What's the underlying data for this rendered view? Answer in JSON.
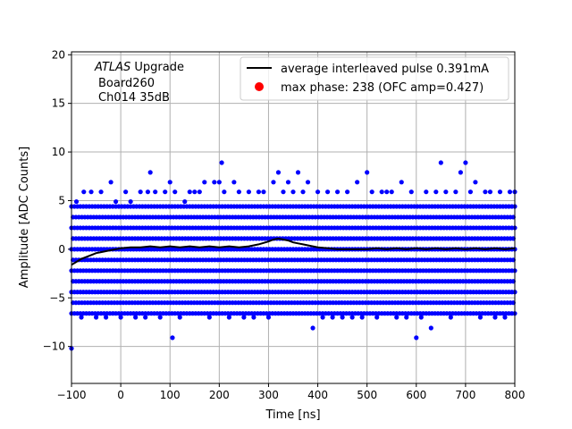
{
  "chart_data": {
    "type": "scatter",
    "xlabel": "Time [ns]",
    "ylabel": "Amplitude [ADC Counts]",
    "xlim": [
      -100,
      800
    ],
    "ylim": [
      -13.8,
      20.3
    ],
    "xticks": [
      -100,
      0,
      100,
      200,
      300,
      400,
      500,
      600,
      700,
      800
    ],
    "yticks": [
      -10,
      -5,
      0,
      5,
      10,
      15,
      20
    ],
    "grid": true,
    "legend_position": "top-right",
    "annotation": {
      "line1_italic": "ATLAS",
      "line1_rest": " Upgrade",
      "line2": "Board260",
      "line3": "Ch014 35dB"
    },
    "series": [
      {
        "name": "average interleaved pulse 0.391mA",
        "kind": "line",
        "color": "#000000",
        "x": [
          -100,
          -90,
          -80,
          -70,
          -60,
          -50,
          -40,
          -30,
          -20,
          -10,
          0,
          20,
          40,
          60,
          80,
          100,
          120,
          140,
          160,
          180,
          200,
          220,
          240,
          260,
          280,
          300,
          310,
          320,
          330,
          340,
          350,
          360,
          370,
          380,
          390,
          400,
          420,
          440,
          460,
          480,
          500,
          520,
          540,
          560,
          580,
          600,
          620,
          640,
          660,
          680,
          700,
          720,
          740,
          760,
          780,
          800
        ],
        "y": [
          -1.6,
          -1.3,
          -1.0,
          -0.8,
          -0.6,
          -0.4,
          -0.3,
          -0.2,
          -0.1,
          0.0,
          0.1,
          0.2,
          0.2,
          0.3,
          0.2,
          0.3,
          0.2,
          0.3,
          0.2,
          0.3,
          0.2,
          0.3,
          0.2,
          0.3,
          0.5,
          0.8,
          1.0,
          1.1,
          1.0,
          0.9,
          0.7,
          0.6,
          0.5,
          0.4,
          0.3,
          0.2,
          0.1,
          0.0,
          0.0,
          0.0,
          0.0,
          0.1,
          0.0,
          0.1,
          0.0,
          0.1,
          0.0,
          0.1,
          0.0,
          0.1,
          0.0,
          0.1,
          0.0,
          0.1,
          0.0,
          0.1
        ]
      },
      {
        "name": "max phase: 238 (OFC amp=0.427)",
        "kind": "scatter",
        "color": "#0000ff",
        "legend_marker_color": "#ff0000",
        "dense_levels": [
          -6.6,
          -5.5,
          -4.4,
          -3.3,
          -2.2,
          -1.1,
          0.0,
          1.1,
          2.2,
          3.3,
          4.4
        ],
        "dense_x_range": [
          -100,
          800
        ],
        "dense_x_step": 6,
        "scattered_points": [
          [
            -100,
            -10.2
          ],
          [
            -90,
            4.9
          ],
          [
            -80,
            -7.0
          ],
          [
            -75,
            5.9
          ],
          [
            -60,
            5.9
          ],
          [
            -50,
            -7.0
          ],
          [
            -40,
            5.9
          ],
          [
            -30,
            -7.0
          ],
          [
            -20,
            6.9
          ],
          [
            -10,
            4.9
          ],
          [
            0,
            -7.0
          ],
          [
            10,
            5.9
          ],
          [
            20,
            4.9
          ],
          [
            30,
            -7.0
          ],
          [
            40,
            5.9
          ],
          [
            50,
            -7.0
          ],
          [
            55,
            5.9
          ],
          [
            60,
            7.9
          ],
          [
            70,
            5.9
          ],
          [
            80,
            -7.0
          ],
          [
            90,
            5.9
          ],
          [
            100,
            6.9
          ],
          [
            105,
            -9.1
          ],
          [
            110,
            5.9
          ],
          [
            120,
            -7.0
          ],
          [
            130,
            4.9
          ],
          [
            140,
            5.9
          ],
          [
            150,
            5.9
          ],
          [
            160,
            5.9
          ],
          [
            170,
            6.9
          ],
          [
            180,
            -7.0
          ],
          [
            190,
            6.9
          ],
          [
            200,
            6.9
          ],
          [
            205,
            8.9
          ],
          [
            210,
            5.9
          ],
          [
            220,
            -7.0
          ],
          [
            230,
            6.9
          ],
          [
            240,
            5.9
          ],
          [
            250,
            -7.0
          ],
          [
            260,
            5.9
          ],
          [
            270,
            -7.0
          ],
          [
            280,
            5.9
          ],
          [
            290,
            5.9
          ],
          [
            300,
            -7.0
          ],
          [
            310,
            6.9
          ],
          [
            320,
            7.9
          ],
          [
            330,
            5.9
          ],
          [
            340,
            6.9
          ],
          [
            350,
            5.9
          ],
          [
            360,
            7.9
          ],
          [
            370,
            5.9
          ],
          [
            380,
            6.9
          ],
          [
            390,
            -8.1
          ],
          [
            400,
            5.9
          ],
          [
            410,
            -7.0
          ],
          [
            420,
            5.9
          ],
          [
            430,
            -7.0
          ],
          [
            440,
            5.9
          ],
          [
            450,
            -7.0
          ],
          [
            460,
            5.9
          ],
          [
            470,
            -7.0
          ],
          [
            480,
            6.9
          ],
          [
            490,
            -7.0
          ],
          [
            500,
            7.9
          ],
          [
            510,
            5.9
          ],
          [
            520,
            -7.0
          ],
          [
            530,
            5.9
          ],
          [
            540,
            5.9
          ],
          [
            550,
            5.9
          ],
          [
            560,
            -7.0
          ],
          [
            570,
            6.9
          ],
          [
            580,
            -7.0
          ],
          [
            590,
            5.9
          ],
          [
            600,
            -9.1
          ],
          [
            610,
            -7.0
          ],
          [
            620,
            5.9
          ],
          [
            630,
            -8.1
          ],
          [
            640,
            5.9
          ],
          [
            650,
            8.9
          ],
          [
            660,
            5.9
          ],
          [
            670,
            -7.0
          ],
          [
            680,
            5.9
          ],
          [
            690,
            7.9
          ],
          [
            700,
            8.9
          ],
          [
            710,
            5.9
          ],
          [
            720,
            6.9
          ],
          [
            730,
            -7.0
          ],
          [
            740,
            5.9
          ],
          [
            750,
            5.9
          ],
          [
            760,
            -7.0
          ],
          [
            770,
            5.9
          ],
          [
            780,
            -7.0
          ],
          [
            790,
            5.9
          ],
          [
            800,
            5.9
          ]
        ]
      }
    ]
  }
}
